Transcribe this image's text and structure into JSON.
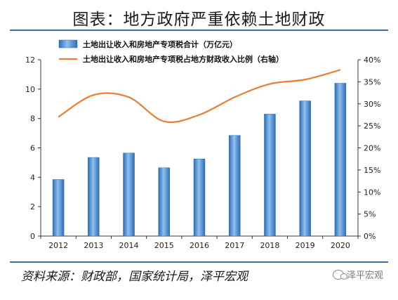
{
  "title": "图表：地方政府严重依赖土地财政",
  "source": "资料来源：财政部，国家统计局，泽平宏观",
  "watermark": "泽平宏观",
  "watermark_icon": "wechat-icon",
  "colors": {
    "bar": "#4f8fd6",
    "bar_edge": "#2e6db4",
    "line": "#ed7d31",
    "rule": "#3a6ea5"
  },
  "chart_data": {
    "type": "bar+line",
    "categories": [
      "2012",
      "2013",
      "2014",
      "2015",
      "2016",
      "2017",
      "2018",
      "2019",
      "2020"
    ],
    "series": [
      {
        "name": "土地出让收入和房地产专项税合计（万亿元）",
        "type": "bar",
        "axis": "left",
        "values": [
          3.85,
          5.35,
          5.65,
          4.65,
          5.25,
          6.85,
          8.3,
          9.2,
          10.4
        ]
      },
      {
        "name": "土地出让收入和房地产专项税占地方财政收入比例（右轴）",
        "type": "line",
        "axis": "right",
        "values": [
          27.0,
          32.0,
          31.5,
          26.0,
          27.5,
          31.5,
          34.5,
          35.5,
          37.7
        ]
      }
    ],
    "y_left": {
      "min": 0,
      "max": 12,
      "ticks": [
        "0",
        "2",
        "4",
        "6",
        "8",
        "10",
        "12"
      ]
    },
    "y_right": {
      "min": 0,
      "max": 40,
      "ticks": [
        "0%",
        "5%",
        "10%",
        "15%",
        "20%",
        "25%",
        "30%",
        "35%",
        "40%"
      ]
    },
    "grid": false,
    "legend_position": "top-left"
  }
}
